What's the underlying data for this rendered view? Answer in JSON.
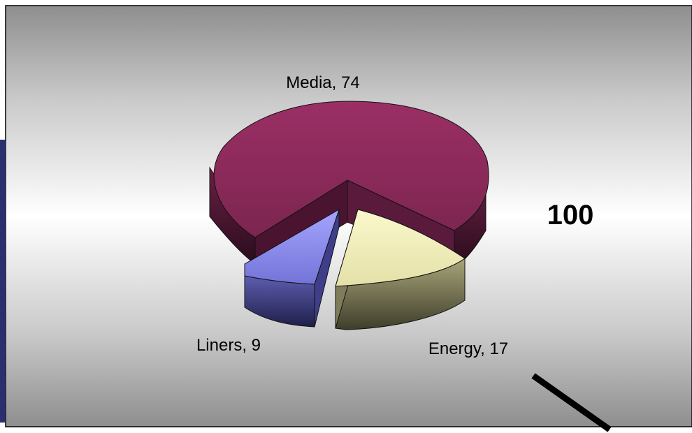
{
  "chart_data": {
    "type": "pie",
    "style": "3d-exploded",
    "slices": [
      {
        "label": "Media",
        "value": 74,
        "color": "#9a2f63"
      },
      {
        "label": "Energy",
        "value": 17,
        "color": "#f3f0bf"
      },
      {
        "label": "Liners",
        "value": 9,
        "color": "#8f8ff0"
      }
    ],
    "total_label": "100",
    "legend": "none"
  },
  "colors": {
    "panel_light": "#ffffff",
    "panel_dark": "#8a8a8a",
    "frame": "#000000",
    "left_accent": "#2a2f6e"
  }
}
